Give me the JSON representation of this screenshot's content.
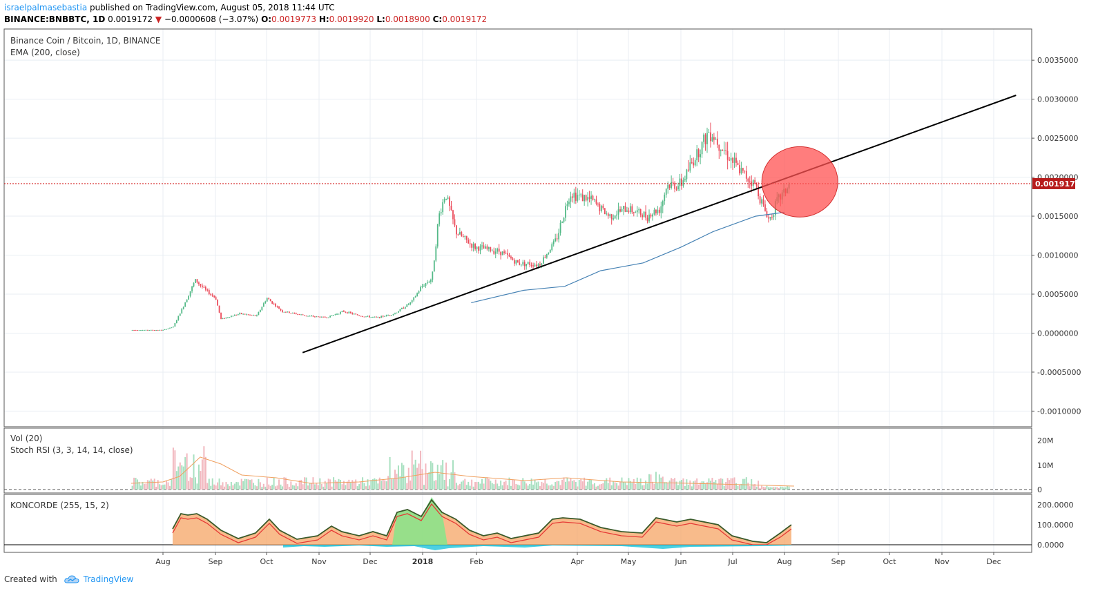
{
  "header": {
    "author": "israelpalmasebastia",
    "published": " published on TradingView.com, August 05, 2018 11:44 UTC",
    "symbol": "BINANCE:BNBBTC, 1D",
    "price": "0.0019172",
    "arrow": "▼",
    "change": "−0.0000608 (−3.07%)",
    "o_label": "O:",
    "o_value": "0.0019773",
    "h_label": "H:",
    "h_value": "0.0019920",
    "l_label": "L:",
    "l_value": "0.0018900",
    "c_label": "C:",
    "c_value": "0.0019172"
  },
  "legends": {
    "main_title": "Binance Coin / Bitcoin, 1D, BINANCE",
    "ema": "EMA (200, close)",
    "vol": "Vol (20)",
    "stoch": "Stoch RSI (3, 3, 14, 14, close)",
    "koncorde": "KONCORDE (255, 15, 2)"
  },
  "footer": {
    "created_with": "Created with",
    "brand": "TradingView"
  },
  "colors": {
    "up": "#53b987",
    "down": "#eb4d5c",
    "ema": "#4682b4",
    "trend": "#000000",
    "circle_fill": "#ff5252",
    "price_line": "#cc0000",
    "orange": "#f5a464",
    "green_fill": "#7ee88a"
  },
  "chart_data": {
    "type": "candlestick",
    "price_axis_ticks": [
      "0.0035000",
      "0.0030000",
      "0.0025000",
      "0.0020000",
      "0.0015000",
      "0.0010000",
      "0.0005000",
      "0.0000000",
      "-0.0005000",
      "-0.0010000"
    ],
    "current_price_label": "0.0019172",
    "ylim": [
      -0.0012,
      0.0039
    ],
    "time_axis_labels": [
      "Aug",
      "Sep",
      "Oct",
      "Nov",
      "Dec",
      "2018",
      "Feb",
      "Apr",
      "May",
      "Jun",
      "Jul",
      "Aug",
      "Sep",
      "Oct",
      "Nov",
      "Dec"
    ],
    "price_path": [
      [
        "2017-07-14",
        4e-05
      ],
      [
        "2017-08-01",
        4e-05
      ],
      [
        "2017-08-07",
        8e-05
      ],
      [
        "2017-08-12",
        0.0003
      ],
      [
        "2017-08-20",
        0.00068
      ],
      [
        "2017-08-26",
        0.00055
      ],
      [
        "2017-09-01",
        0.00045
      ],
      [
        "2017-09-04",
        0.00018
      ],
      [
        "2017-09-15",
        0.00025
      ],
      [
        "2017-09-25",
        0.00022
      ],
      [
        "2017-10-01",
        0.00045
      ],
      [
        "2017-10-10",
        0.00028
      ],
      [
        "2017-10-25",
        0.00022
      ],
      [
        "2017-11-05",
        0.0002
      ],
      [
        "2017-11-15",
        0.00028
      ],
      [
        "2017-11-25",
        0.00022
      ],
      [
        "2017-12-05",
        0.0002
      ],
      [
        "2017-12-15",
        0.00025
      ],
      [
        "2017-12-25",
        0.0004
      ],
      [
        "2017-12-31",
        0.0006
      ],
      [
        "2018-01-06",
        0.0007
      ],
      [
        "2018-01-10",
        0.0015
      ],
      [
        "2018-01-14",
        0.0018
      ],
      [
        "2018-01-20",
        0.0013
      ],
      [
        "2018-01-31",
        0.0011
      ],
      [
        "2018-02-15",
        0.00105
      ],
      [
        "2018-02-25",
        0.0009
      ],
      [
        "2018-03-10",
        0.00088
      ],
      [
        "2018-03-20",
        0.0012
      ],
      [
        "2018-03-28",
        0.0018
      ],
      [
        "2018-04-10",
        0.0017
      ],
      [
        "2018-04-20",
        0.0015
      ],
      [
        "2018-05-01",
        0.0016
      ],
      [
        "2018-05-12",
        0.0015
      ],
      [
        "2018-05-20",
        0.0016
      ],
      [
        "2018-05-24",
        0.0019
      ],
      [
        "2018-06-01",
        0.0019
      ],
      [
        "2018-06-08",
        0.0022
      ],
      [
        "2018-06-18",
        0.0026
      ],
      [
        "2018-06-25",
        0.0024
      ],
      [
        "2018-07-05",
        0.0021
      ],
      [
        "2018-07-15",
        0.0019
      ],
      [
        "2018-07-20",
        0.0016
      ],
      [
        "2018-07-23",
        0.00145
      ],
      [
        "2018-07-28",
        0.0017
      ],
      [
        "2018-08-04",
        0.0019
      ]
    ],
    "ema_200": [
      [
        "2018-01-29",
        0.00039
      ],
      [
        "2018-03-01",
        0.00055
      ],
      [
        "2018-03-25",
        0.0006
      ],
      [
        "2018-04-15",
        0.0008
      ],
      [
        "2018-05-10",
        0.0009
      ],
      [
        "2018-06-01",
        0.0011
      ],
      [
        "2018-06-20",
        0.0013
      ],
      [
        "2018-07-15",
        0.0015
      ],
      [
        "2018-08-01",
        0.00155
      ]
    ],
    "trend_line": [
      [
        "2017-10-22",
        -0.00025
      ],
      [
        "2018-12-15",
        0.00305
      ]
    ],
    "highlight_circle": {
      "date": "2018-08-10",
      "price": 0.00194
    }
  },
  "volume_axis": [
    "20M",
    "10M",
    "0"
  ],
  "koncorde_axis": [
    "200.0000",
    "100.0000",
    "0.0000"
  ]
}
